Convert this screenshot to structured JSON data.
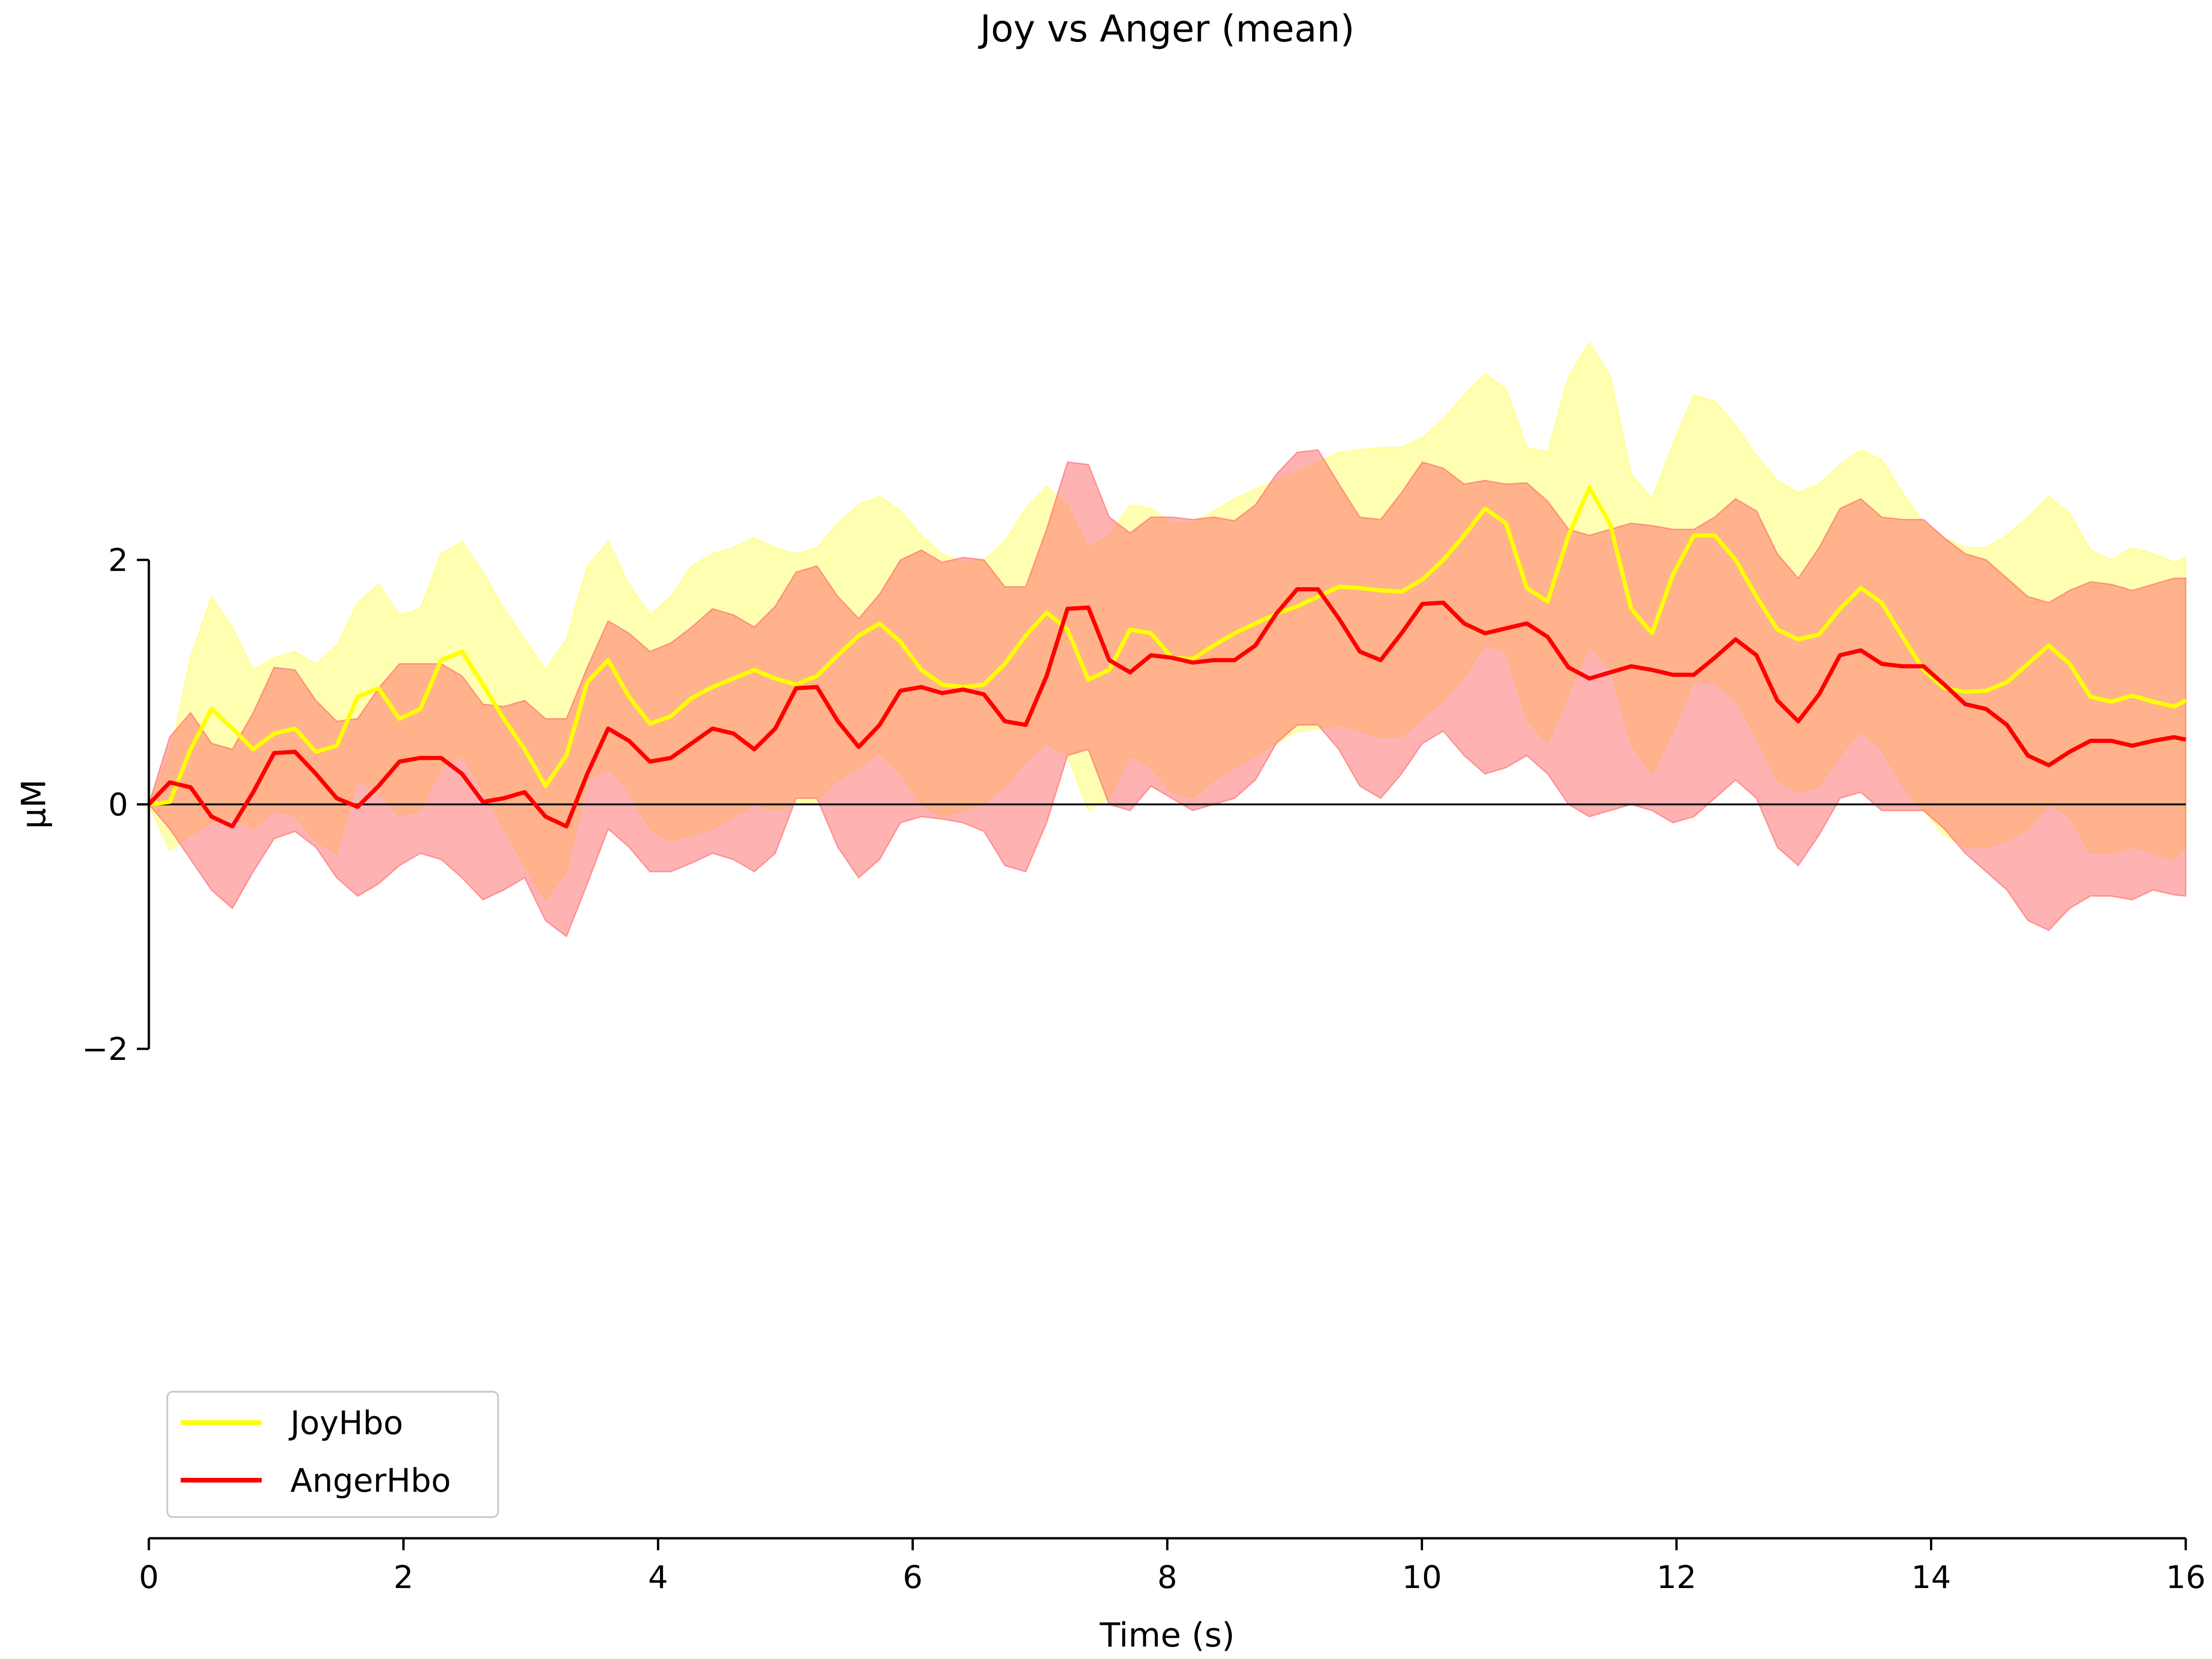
{
  "chart_data": {
    "type": "line",
    "title": "Joy vs Anger (mean)",
    "xlabel": "Time (s)",
    "ylabel": "μM",
    "xlim": [
      0,
      16
    ],
    "ylim": [
      -2,
      2
    ],
    "x_ticks": [
      0,
      2,
      4,
      6,
      8,
      10,
      12,
      14,
      16
    ],
    "y_ticks": [
      -2,
      0,
      2
    ],
    "y_tick_labels": [
      "−2",
      "0",
      "2"
    ],
    "zero_line": true,
    "grid": false,
    "legend_position": "lower-left",
    "x": [
      0,
      0.164,
      0.328,
      0.492,
      0.656,
      0.82,
      0.984,
      1.148,
      1.312,
      1.476,
      1.64,
      1.804,
      1.968,
      2.132,
      2.296,
      2.46,
      2.624,
      2.788,
      2.952,
      3.116,
      3.28,
      3.444,
      3.608,
      3.772,
      3.936,
      4.1,
      4.264,
      4.428,
      4.592,
      4.756,
      4.92,
      5.084,
      5.248,
      5.412,
      5.576,
      5.74,
      5.904,
      6.068,
      6.232,
      6.396,
      6.56,
      6.724,
      6.888,
      7.052,
      7.216,
      7.38,
      7.544,
      7.708,
      7.872,
      8.036,
      8.2,
      8.364,
      8.528,
      8.692,
      8.856,
      9.02,
      9.184,
      9.348,
      9.512,
      9.676,
      9.84,
      10.004,
      10.168,
      10.332,
      10.496,
      10.66,
      10.824,
      10.988,
      11.152,
      11.316,
      11.48,
      11.644,
      11.808,
      11.972,
      12.136,
      12.3,
      12.464,
      12.628,
      12.792,
      12.956,
      13.12,
      13.284,
      13.448,
      13.612,
      13.776,
      13.94,
      14.104,
      14.268,
      14.432,
      14.596,
      14.76,
      14.924,
      15.088,
      15.252,
      15.416,
      15.58,
      15.744,
      15.908,
      16.0
    ],
    "series": [
      {
        "name": "JoyHbo",
        "color": "#ffff00",
        "band_color": "#ffff66",
        "values": [
          0,
          0.02,
          0.45,
          0.78,
          0.62,
          0.45,
          0.58,
          0.62,
          0.43,
          0.48,
          0.88,
          0.95,
          0.7,
          0.78,
          1.18,
          1.25,
          0.98,
          0.7,
          0.45,
          0.15,
          0.4,
          1.0,
          1.18,
          0.88,
          0.66,
          0.72,
          0.87,
          0.96,
          1.03,
          1.1,
          1.03,
          0.98,
          1.05,
          1.22,
          1.38,
          1.48,
          1.33,
          1.1,
          0.98,
          0.96,
          0.98,
          1.15,
          1.38,
          1.57,
          1.43,
          1.02,
          1.1,
          1.43,
          1.4,
          1.2,
          1.19,
          1.3,
          1.4,
          1.48,
          1.56,
          1.62,
          1.7,
          1.78,
          1.77,
          1.75,
          1.74,
          1.84,
          2.0,
          2.2,
          2.42,
          2.3,
          1.77,
          1.66,
          2.2,
          2.59,
          2.29,
          1.6,
          1.4,
          1.88,
          2.2,
          2.2,
          2.0,
          1.7,
          1.43,
          1.35,
          1.39,
          1.6,
          1.77,
          1.65,
          1.37,
          1.1,
          0.95,
          0.92,
          0.93,
          1.0,
          1.15,
          1.3,
          1.15,
          0.88,
          0.84,
          0.89,
          0.84,
          0.8,
          0.85
        ],
        "lower": [
          0,
          -0.38,
          -0.25,
          -0.15,
          -0.1,
          -0.2,
          -0.05,
          -0.1,
          -0.3,
          -0.4,
          0.2,
          0.1,
          -0.1,
          -0.05,
          0.3,
          0.4,
          0.1,
          -0.2,
          -0.5,
          -0.78,
          -0.55,
          0.2,
          0.3,
          0.1,
          -0.2,
          -0.3,
          -0.25,
          -0.2,
          -0.1,
          0.0,
          -0.05,
          0.0,
          0.02,
          0.2,
          0.3,
          0.42,
          0.25,
          0.0,
          -0.1,
          -0.05,
          0.0,
          0.15,
          0.35,
          0.5,
          0.4,
          -0.05,
          0.05,
          0.4,
          0.3,
          0.1,
          0.05,
          0.2,
          0.3,
          0.4,
          0.5,
          0.6,
          0.62,
          0.65,
          0.6,
          0.55,
          0.55,
          0.7,
          0.85,
          1.05,
          1.3,
          1.25,
          0.7,
          0.5,
          0.9,
          1.3,
          1.1,
          0.5,
          0.25,
          0.6,
          1.0,
          1.0,
          0.85,
          0.55,
          0.2,
          0.1,
          0.15,
          0.4,
          0.6,
          0.45,
          0.15,
          -0.05,
          -0.25,
          -0.35,
          -0.35,
          -0.3,
          -0.2,
          0.0,
          -0.1,
          -0.4,
          -0.4,
          -0.35,
          -0.4,
          -0.45,
          -0.35
        ],
        "upper": [
          0,
          0.4,
          1.2,
          1.7,
          1.45,
          1.1,
          1.2,
          1.25,
          1.15,
          1.3,
          1.65,
          1.8,
          1.55,
          1.6,
          2.05,
          2.15,
          1.9,
          1.6,
          1.35,
          1.1,
          1.35,
          1.95,
          2.15,
          1.8,
          1.55,
          1.7,
          1.95,
          2.05,
          2.1,
          2.18,
          2.1,
          2.05,
          2.1,
          2.3,
          2.45,
          2.52,
          2.4,
          2.2,
          2.05,
          1.98,
          2.0,
          2.15,
          2.42,
          2.6,
          2.45,
          2.1,
          2.2,
          2.45,
          2.42,
          2.3,
          2.3,
          2.4,
          2.5,
          2.58,
          2.65,
          2.72,
          2.8,
          2.88,
          2.9,
          2.92,
          2.92,
          3.0,
          3.15,
          3.35,
          3.52,
          3.4,
          2.92,
          2.88,
          3.5,
          3.78,
          3.5,
          2.7,
          2.5,
          2.95,
          3.35,
          3.3,
          3.1,
          2.85,
          2.65,
          2.55,
          2.62,
          2.78,
          2.9,
          2.82,
          2.55,
          2.3,
          2.18,
          2.1,
          2.1,
          2.2,
          2.35,
          2.52,
          2.38,
          2.08,
          2.0,
          2.1,
          2.05,
          1.98,
          2.02
        ]
      },
      {
        "name": "AngerHbo",
        "color": "#ff0000",
        "band_color": "#ff6666",
        "values": [
          0,
          0.18,
          0.14,
          -0.1,
          -0.18,
          0.1,
          0.42,
          0.43,
          0.25,
          0.05,
          -0.02,
          0.15,
          0.35,
          0.38,
          0.38,
          0.25,
          0.02,
          0.05,
          0.1,
          -0.1,
          -0.18,
          0.25,
          0.62,
          0.52,
          0.35,
          0.38,
          0.5,
          0.62,
          0.58,
          0.45,
          0.62,
          0.95,
          0.96,
          0.68,
          0.47,
          0.65,
          0.93,
          0.96,
          0.91,
          0.94,
          0.9,
          0.68,
          0.65,
          1.05,
          1.6,
          1.61,
          1.18,
          1.08,
          1.22,
          1.2,
          1.16,
          1.18,
          1.18,
          1.3,
          1.56,
          1.76,
          1.76,
          1.52,
          1.25,
          1.18,
          1.4,
          1.64,
          1.65,
          1.48,
          1.4,
          1.44,
          1.48,
          1.37,
          1.12,
          1.03,
          1.08,
          1.13,
          1.1,
          1.06,
          1.06,
          1.2,
          1.35,
          1.22,
          0.85,
          0.68,
          0.9,
          1.22,
          1.26,
          1.15,
          1.13,
          1.13,
          0.98,
          0.82,
          0.78,
          0.65,
          0.4,
          0.32,
          0.43,
          0.52,
          0.52,
          0.48,
          0.52,
          0.55,
          0.53
        ],
        "lower": [
          0,
          -0.2,
          -0.45,
          -0.7,
          -0.85,
          -0.55,
          -0.28,
          -0.22,
          -0.35,
          -0.6,
          -0.75,
          -0.65,
          -0.5,
          -0.4,
          -0.45,
          -0.6,
          -0.78,
          -0.7,
          -0.6,
          -0.95,
          -1.08,
          -0.65,
          -0.2,
          -0.35,
          -0.55,
          -0.55,
          -0.48,
          -0.4,
          -0.45,
          -0.55,
          -0.4,
          0.05,
          0.05,
          -0.35,
          -0.6,
          -0.45,
          -0.15,
          -0.1,
          -0.12,
          -0.15,
          -0.22,
          -0.5,
          -0.55,
          -0.15,
          0.4,
          0.45,
          0.0,
          -0.05,
          0.15,
          0.05,
          -0.05,
          0.0,
          0.05,
          0.2,
          0.5,
          0.65,
          0.65,
          0.45,
          0.15,
          0.05,
          0.25,
          0.5,
          0.6,
          0.4,
          0.25,
          0.3,
          0.4,
          0.25,
          0.0,
          -0.1,
          -0.05,
          0.0,
          -0.05,
          -0.15,
          -0.1,
          0.05,
          0.2,
          0.05,
          -0.35,
          -0.5,
          -0.25,
          0.05,
          0.1,
          -0.05,
          -0.05,
          -0.05,
          -0.2,
          -0.4,
          -0.55,
          -0.7,
          -0.95,
          -1.03,
          -0.85,
          -0.75,
          -0.75,
          -0.78,
          -0.7,
          -0.74,
          -0.75
        ],
        "upper": [
          0,
          0.55,
          0.75,
          0.5,
          0.45,
          0.75,
          1.12,
          1.1,
          0.85,
          0.68,
          0.7,
          0.95,
          1.15,
          1.15,
          1.15,
          1.05,
          0.82,
          0.8,
          0.85,
          0.7,
          0.7,
          1.12,
          1.5,
          1.4,
          1.25,
          1.32,
          1.45,
          1.6,
          1.55,
          1.45,
          1.62,
          1.9,
          1.95,
          1.7,
          1.52,
          1.72,
          2.0,
          2.08,
          1.98,
          2.02,
          2.0,
          1.78,
          1.78,
          2.25,
          2.8,
          2.78,
          2.35,
          2.22,
          2.35,
          2.35,
          2.33,
          2.35,
          2.32,
          2.45,
          2.7,
          2.88,
          2.9,
          2.62,
          2.35,
          2.33,
          2.55,
          2.8,
          2.75,
          2.62,
          2.65,
          2.62,
          2.63,
          2.48,
          2.25,
          2.2,
          2.25,
          2.3,
          2.28,
          2.25,
          2.25,
          2.35,
          2.5,
          2.4,
          2.05,
          1.85,
          2.1,
          2.42,
          2.5,
          2.35,
          2.33,
          2.33,
          2.18,
          2.05,
          2.0,
          1.85,
          1.7,
          1.65,
          1.75,
          1.82,
          1.8,
          1.75,
          1.8,
          1.85,
          1.85
        ]
      }
    ]
  }
}
